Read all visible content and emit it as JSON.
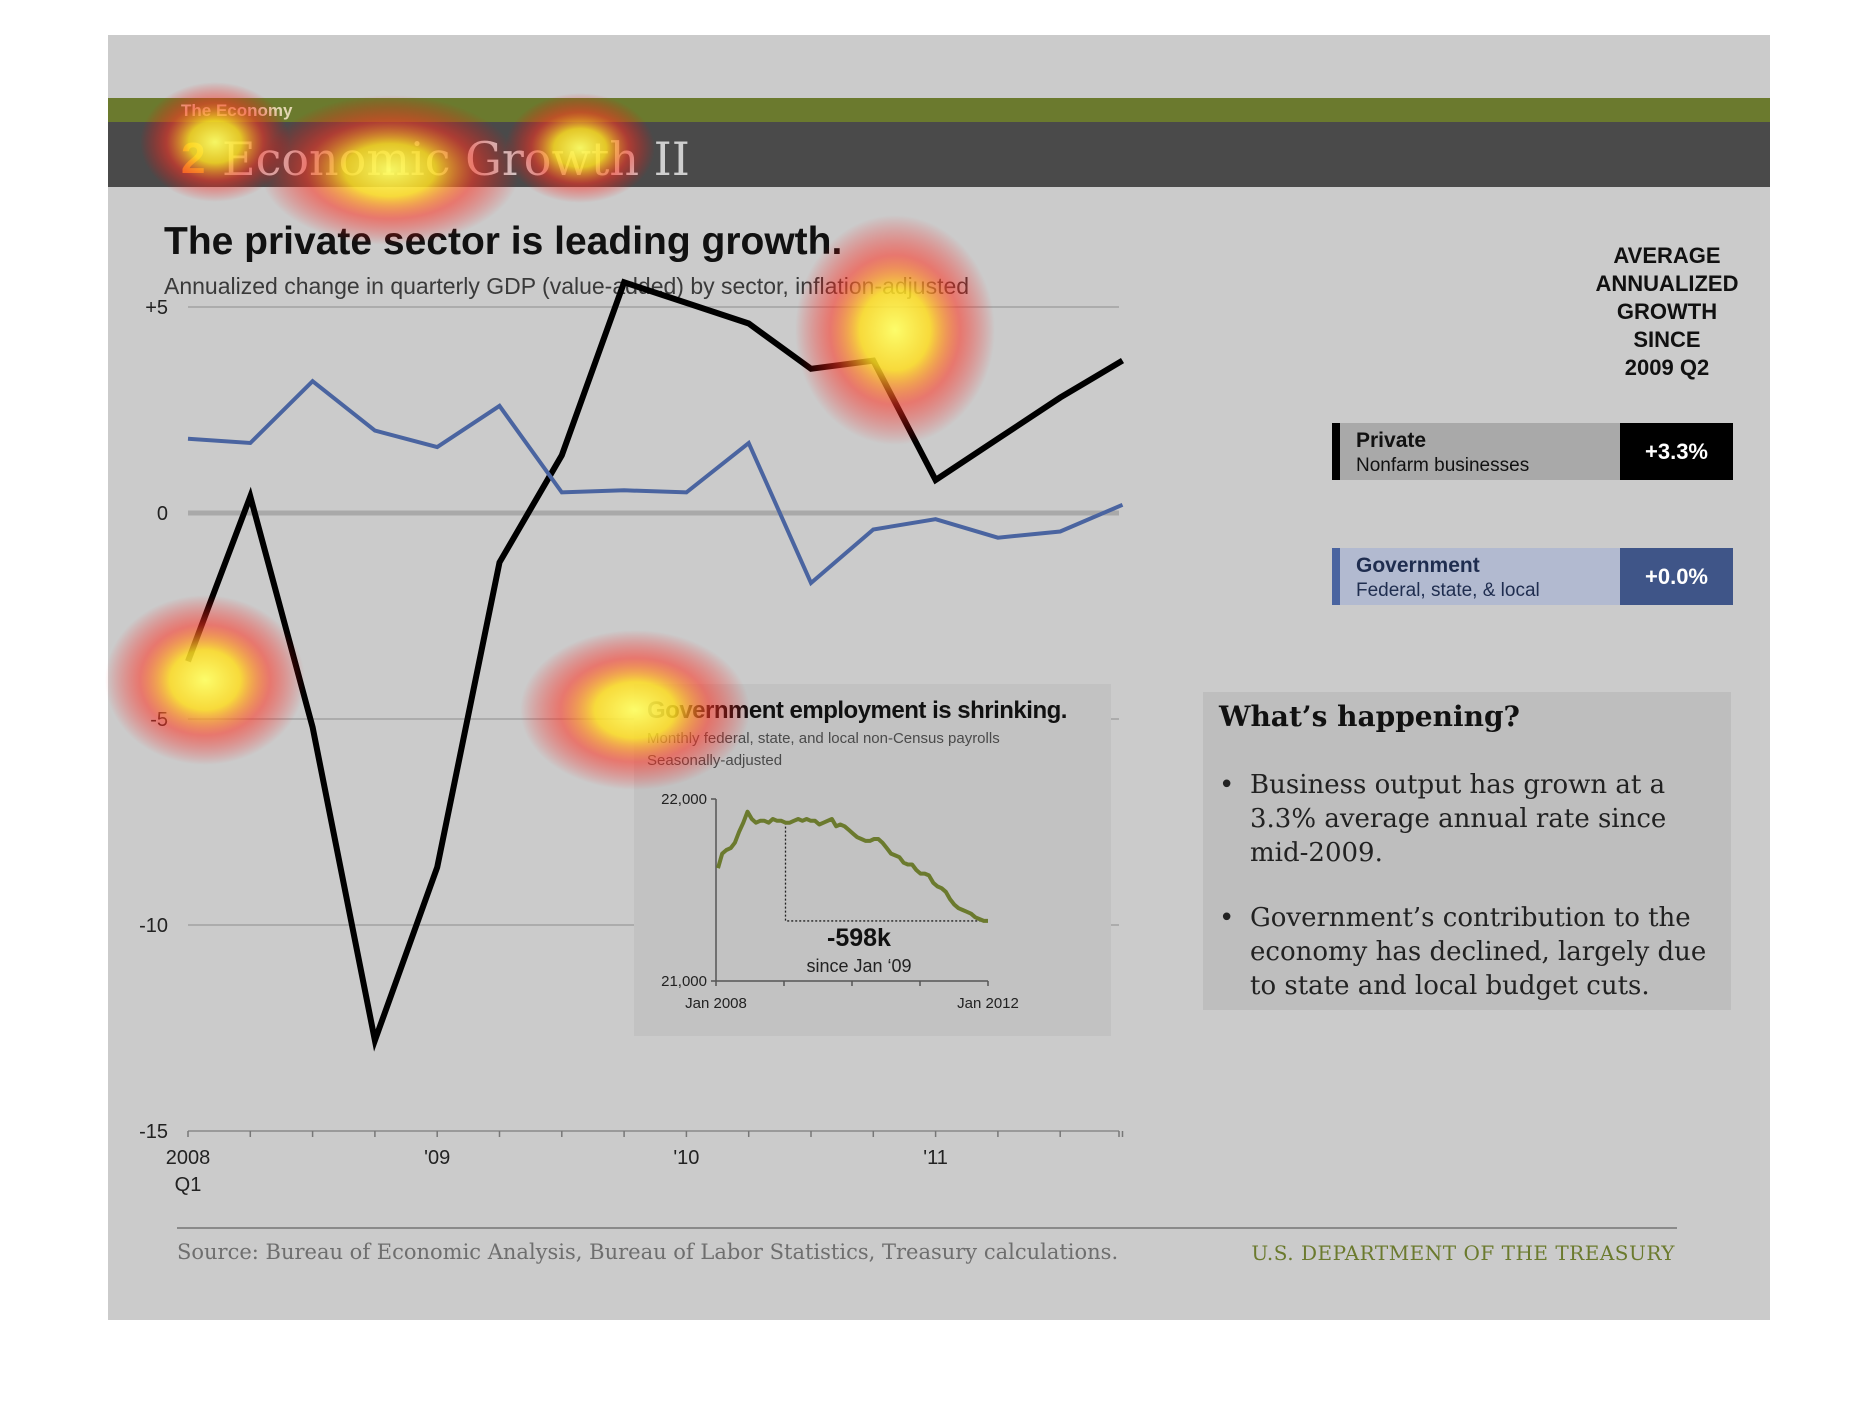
{
  "header": {
    "section": "The Economy",
    "number": "2",
    "title": "Economic Growth II"
  },
  "headline": "The private sector is leading growth.",
  "subhead": "Annualized change in quarterly GDP (value-added) by sector, inflation-adjusted",
  "legend": {
    "header": "AVERAGE\nANNUALIZED\nGROWTH\nSINCE\n2009 Q2",
    "private": {
      "name": "Private",
      "desc": "Nonfarm businesses",
      "value": "+3.3%",
      "color": "#000000"
    },
    "government": {
      "name": "Government",
      "desc": "Federal, state, & local",
      "value": "+0.0%",
      "color": "#4a64a0"
    }
  },
  "inset": {
    "title": "Government employment is shrinking.",
    "sub1": "Monthly federal, state, and local non-Census payrolls",
    "sub2": "Seasonally-adjusted",
    "annotation_value": "-598k",
    "annotation_text": "since Jan ‘09"
  },
  "happening": {
    "title": "What’s happening?",
    "bullets": [
      "Business output has grown at a 3.3% average annual rate since mid-2009.",
      "Government’s contribution to the economy has declined, largely due to state and local budget cuts."
    ]
  },
  "footer": {
    "source": "Source: Bureau of Economic Analysis, Bureau of Labor Statistics, Treasury calculations.",
    "org": "U.S. DEPARTMENT OF THE TREASURY"
  },
  "chart_data": [
    {
      "type": "line",
      "title": "The private sector is leading growth.",
      "subtitle": "Annualized change in quarterly GDP (value-added) by sector, inflation-adjusted",
      "x": [
        "2008 Q1",
        "2008 Q2",
        "2008 Q3",
        "2008 Q4",
        "2009 Q1",
        "2009 Q2",
        "2009 Q3",
        "2009 Q4",
        "2010 Q1",
        "2010 Q2",
        "2010 Q3",
        "2010 Q4",
        "2011 Q1",
        "2011 Q2",
        "2011 Q3",
        "2011 Q4"
      ],
      "xtick_labels": [
        "2008\nQ1",
        "'09",
        "'10",
        "'11"
      ],
      "ytick_labels": [
        "+5",
        "0",
        "-5",
        "-10",
        "-15"
      ],
      "ylim": [
        -15,
        5
      ],
      "series": [
        {
          "name": "Private",
          "color": "#000000",
          "values": [
            -3.6,
            0.4,
            -5.2,
            -12.8,
            -8.6,
            -1.2,
            1.4,
            5.6,
            5.1,
            4.6,
            3.5,
            3.7,
            0.8,
            1.8,
            2.8,
            3.7
          ]
        },
        {
          "name": "Government",
          "color": "#4a64a0",
          "values": [
            1.8,
            1.7,
            3.2,
            2.0,
            1.6,
            2.6,
            0.5,
            0.55,
            0.5,
            1.7,
            -1.7,
            -0.4,
            -0.15,
            -0.6,
            -0.45,
            0.2
          ]
        }
      ]
    },
    {
      "type": "line",
      "title": "Government employment is shrinking.",
      "x_range": [
        "Jan 2008",
        "Jan 2012"
      ],
      "xtick_labels": [
        "Jan 2008",
        "Jan 2012"
      ],
      "ytick_labels": [
        "22,000",
        "21,000"
      ],
      "ylim": [
        21000,
        22000
      ],
      "color": "#6b7a2e",
      "series": [
        {
          "values": [
            21620,
            21700,
            21720,
            21730,
            21760,
            21820,
            21870,
            21930,
            21890,
            21870,
            21880,
            21880,
            21870,
            21890,
            21880,
            21880,
            21870,
            21870,
            21880,
            21890,
            21880,
            21890,
            21880,
            21880,
            21860,
            21870,
            21880,
            21890,
            21850,
            21860,
            21850,
            21830,
            21810,
            21790,
            21780,
            21770,
            21770,
            21780,
            21780,
            21760,
            21730,
            21700,
            21690,
            21680,
            21650,
            21640,
            21640,
            21610,
            21590,
            21590,
            21580,
            21540,
            21520,
            21510,
            21490,
            21450,
            21420,
            21400,
            21390,
            21380,
            21370,
            21350,
            21340,
            21330,
            21330
          ]
        }
      ],
      "annotation": {
        "value": "-598k",
        "text": "since Jan ‘09"
      }
    }
  ]
}
